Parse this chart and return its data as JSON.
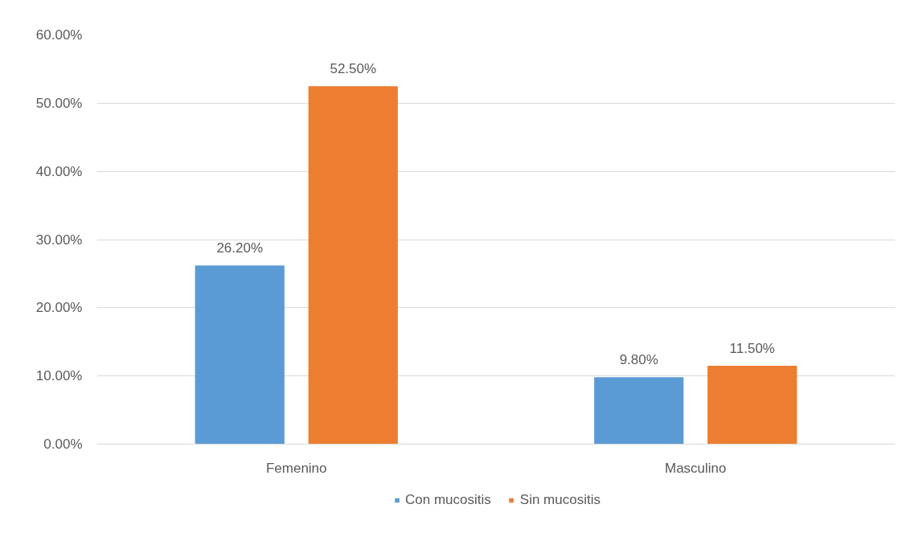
{
  "chart_data": {
    "type": "bar",
    "categories": [
      "Femenino",
      "Masculino"
    ],
    "series": [
      {
        "name": "Con mucositis",
        "color": "#5b9bd5",
        "values": [
          26.2,
          9.8
        ],
        "value_labels": [
          "26.20%",
          "9.80%"
        ]
      },
      {
        "name": "Sin mucositis",
        "color": "#ed7d31",
        "values": [
          52.5,
          11.5
        ],
        "value_labels": [
          "52.50%",
          "11.50%"
        ]
      }
    ],
    "ylim": [
      0,
      60
    ],
    "yticks": [
      {
        "value": 0,
        "label": "0.00%"
      },
      {
        "value": 10,
        "label": "10.00%"
      },
      {
        "value": 20,
        "label": "20.00%"
      },
      {
        "value": 30,
        "label": "30.00%"
      },
      {
        "value": 40,
        "label": "40.00%"
      },
      {
        "value": 50,
        "label": "50.00%"
      },
      {
        "value": 60,
        "label": "60.00%"
      }
    ],
    "grid": "y",
    "legend": "bottom"
  }
}
